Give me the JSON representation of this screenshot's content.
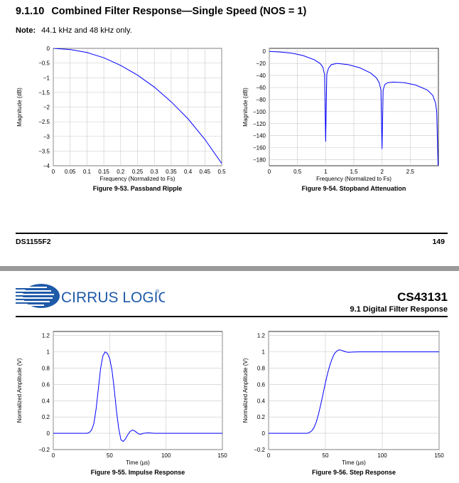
{
  "section": {
    "number": "9.1.10",
    "title": "Combined Filter Response—Single Speed (NOS = 1)"
  },
  "note": {
    "label": "Note:",
    "text": "44.1 kHz and 48 kHz only."
  },
  "footer": {
    "doc_code": "DS1155F2",
    "page_number": "149"
  },
  "header": {
    "logo_text": "CIRRUS LOGIC",
    "logo_mark": "®",
    "doc_id": "CS43131",
    "section_ref": "9.1 Digital Filter Response"
  },
  "colors": {
    "curve": "#0000ff",
    "grid": "#c8c8c8",
    "rule": "#000000",
    "band": "#9a9a9a",
    "logo": "#1f5aa8"
  },
  "chart_data": [
    {
      "id": "passband",
      "type": "line",
      "caption": "Figure 9-53. Passband Ripple",
      "xlabel": "Frequency (Normalized to Fs)",
      "ylabel": "Magnitude (dB)",
      "xlim": [
        0,
        0.5
      ],
      "ylim": [
        -4,
        0
      ],
      "xticks": [
        0,
        0.05,
        0.1,
        0.15,
        0.2,
        0.25,
        0.3,
        0.35,
        0.4,
        0.45,
        0.5
      ],
      "xtick_labels": [
        "0",
        "0.05",
        "0.1",
        "0.15",
        "0.2",
        "0.25",
        "0.3",
        "0.35",
        "0.4",
        "0.45",
        "0.5"
      ],
      "yticks": [
        0,
        -0.5,
        -1,
        -1.5,
        -2,
        -2.5,
        -3,
        -3.5,
        -4
      ],
      "ytick_labels": [
        "0",
        "−0.5",
        "−1",
        "−1.5",
        "−2",
        "−2.5",
        "−3",
        "−3.5",
        "−4"
      ],
      "grid": true,
      "x": [
        0,
        0.05,
        0.1,
        0.15,
        0.2,
        0.25,
        0.3,
        0.35,
        0.4,
        0.45,
        0.5
      ],
      "y": [
        0,
        -0.04,
        -0.14,
        -0.32,
        -0.58,
        -0.91,
        -1.32,
        -1.82,
        -2.4,
        -3.1,
        -3.92
      ]
    },
    {
      "id": "stopband",
      "type": "line",
      "caption": "Figure 9-54. Stopband Attenuation",
      "xlabel": "Frequency (Normalized to Fs)",
      "ylabel": "Magnitude (dB)",
      "xlim": [
        0,
        3
      ],
      "ylim": [
        -190,
        5
      ],
      "xticks": [
        0,
        0.5,
        1,
        1.5,
        2,
        2.5
      ],
      "xtick_labels": [
        "0",
        "0.5",
        "1",
        "1.5",
        "2",
        "2.5"
      ],
      "yticks": [
        0,
        -20,
        -40,
        -60,
        -80,
        -100,
        -120,
        -140,
        -160,
        -180
      ],
      "ytick_labels": [
        "0",
        "−20",
        "−40",
        "−60",
        "−80",
        "−100",
        "−120",
        "−140",
        "−160",
        "−180"
      ],
      "grid": true,
      "x": [
        0,
        0.2,
        0.4,
        0.6,
        0.8,
        0.9,
        0.95,
        0.98,
        1.0,
        1.02,
        1.05,
        1.1,
        1.2,
        1.4,
        1.6,
        1.8,
        1.9,
        1.95,
        1.98,
        2.0,
        2.02,
        2.05,
        2.1,
        2.2,
        2.4,
        2.6,
        2.8,
        2.9,
        2.95,
        2.97,
        3.0
      ],
      "y": [
        0,
        -1,
        -3,
        -7,
        -14,
        -20,
        -26,
        -38,
        -150,
        -38,
        -28,
        -22,
        -20,
        -22,
        -27,
        -36,
        -44,
        -52,
        -64,
        -162,
        -64,
        -55,
        -52,
        -51,
        -52,
        -56,
        -64,
        -73,
        -86,
        -100,
        -210
      ]
    },
    {
      "id": "impulse",
      "type": "line",
      "caption": "Figure 9-55. Impulse Response",
      "xlabel": "Time (µs)",
      "ylabel": "Normalized Amplitude (V)",
      "xlim": [
        0,
        150
      ],
      "ylim": [
        -0.2,
        1.25
      ],
      "xticks": [
        0,
        50,
        100,
        150
      ],
      "xtick_labels": [
        "0",
        "50",
        "100",
        "150"
      ],
      "yticks": [
        -0.2,
        0,
        0.2,
        0.4,
        0.6,
        0.8,
        1,
        1.2
      ],
      "ytick_labels": [
        "−0.2",
        "0",
        "0.2",
        "0.4",
        "0.6",
        "0.8",
        "1",
        "1.2"
      ],
      "grid": true,
      "x": [
        0,
        30,
        32,
        34,
        36,
        38,
        40,
        42,
        44,
        46,
        48,
        50,
        52,
        54,
        56,
        58,
        60,
        62,
        64,
        66,
        68,
        70,
        72,
        74,
        76,
        78,
        80,
        84,
        90,
        100,
        150
      ],
      "y": [
        0,
        0,
        0.01,
        0.04,
        0.12,
        0.3,
        0.55,
        0.8,
        0.95,
        1.0,
        0.98,
        0.92,
        0.78,
        0.55,
        0.28,
        0.06,
        -0.08,
        -0.1,
        -0.07,
        -0.02,
        0.02,
        0.04,
        0.03,
        0.01,
        -0.01,
        -0.01,
        0,
        0.005,
        0,
        0,
        0
      ]
    },
    {
      "id": "step",
      "type": "line",
      "caption": "Figure 9-56. Step Response",
      "xlabel": "Time (µs)",
      "ylabel": "Normalized Amplitude (V)",
      "xlim": [
        0,
        150
      ],
      "ylim": [
        -0.2,
        1.25
      ],
      "xticks": [
        0,
        50,
        100,
        150
      ],
      "xtick_labels": [
        "0",
        "50",
        "100",
        "150"
      ],
      "yticks": [
        -0.2,
        0,
        0.2,
        0.4,
        0.6,
        0.8,
        1,
        1.2
      ],
      "ytick_labels": [
        "−0.2",
        "0",
        "0.2",
        "0.4",
        "0.6",
        "0.8",
        "1",
        "1.2"
      ],
      "grid": true,
      "x": [
        0,
        34,
        36,
        38,
        40,
        42,
        44,
        46,
        48,
        50,
        52,
        54,
        56,
        58,
        60,
        62,
        64,
        66,
        68,
        70,
        74,
        80,
        90,
        100,
        150
      ],
      "y": [
        0,
        0,
        0.01,
        0.03,
        0.07,
        0.14,
        0.24,
        0.36,
        0.49,
        0.62,
        0.74,
        0.84,
        0.92,
        0.98,
        1.01,
        1.025,
        1.02,
        1.01,
        1.0,
        0.995,
        0.998,
        1.0,
        1.0,
        1.0,
        1.0
      ]
    }
  ]
}
